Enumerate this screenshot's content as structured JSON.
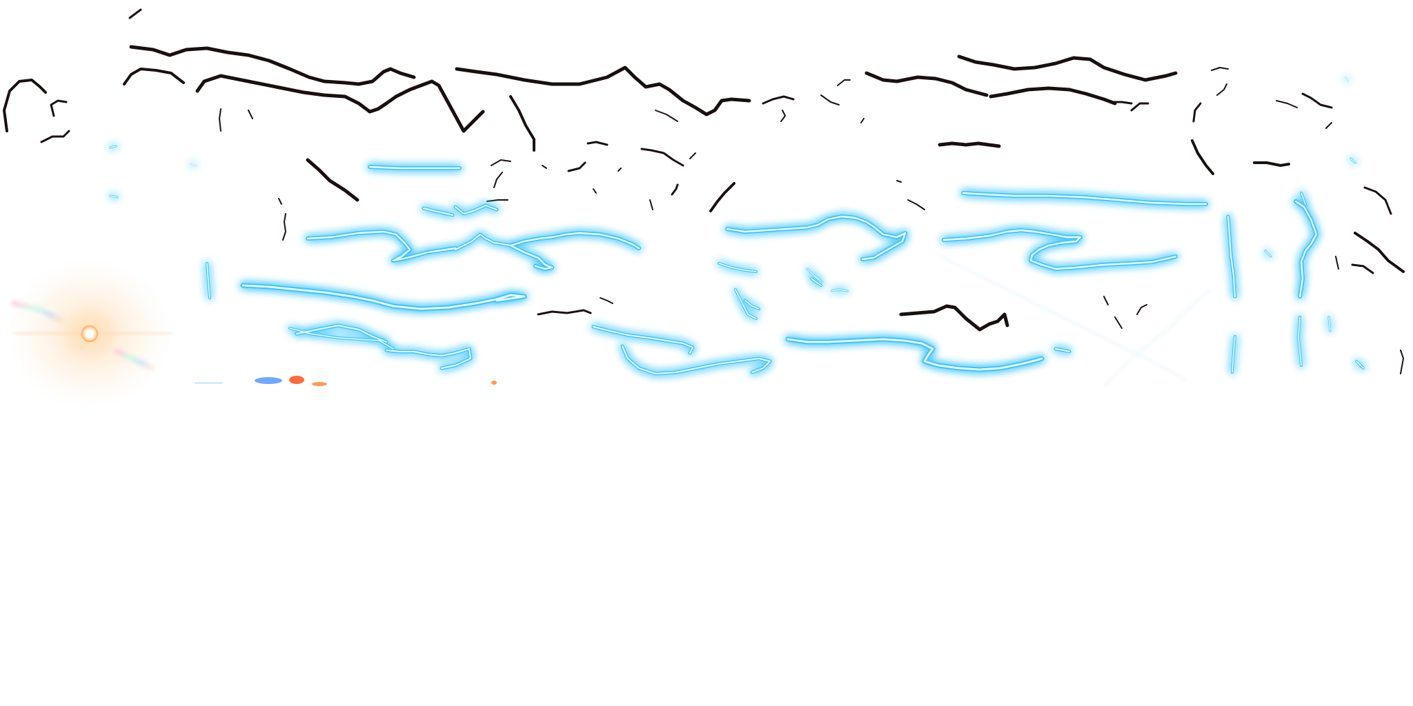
{
  "sheet": {
    "background": "#ffffff",
    "crack_color": "#1a0f0f",
    "glow_core_color": "#eaffff",
    "glow_outer_color": "#3fc4ff",
    "flare_color": "#ffb070",
    "dot_colors": [
      "#6fa8ff",
      "#ff6a3a",
      "#ff9a50"
    ]
  }
}
